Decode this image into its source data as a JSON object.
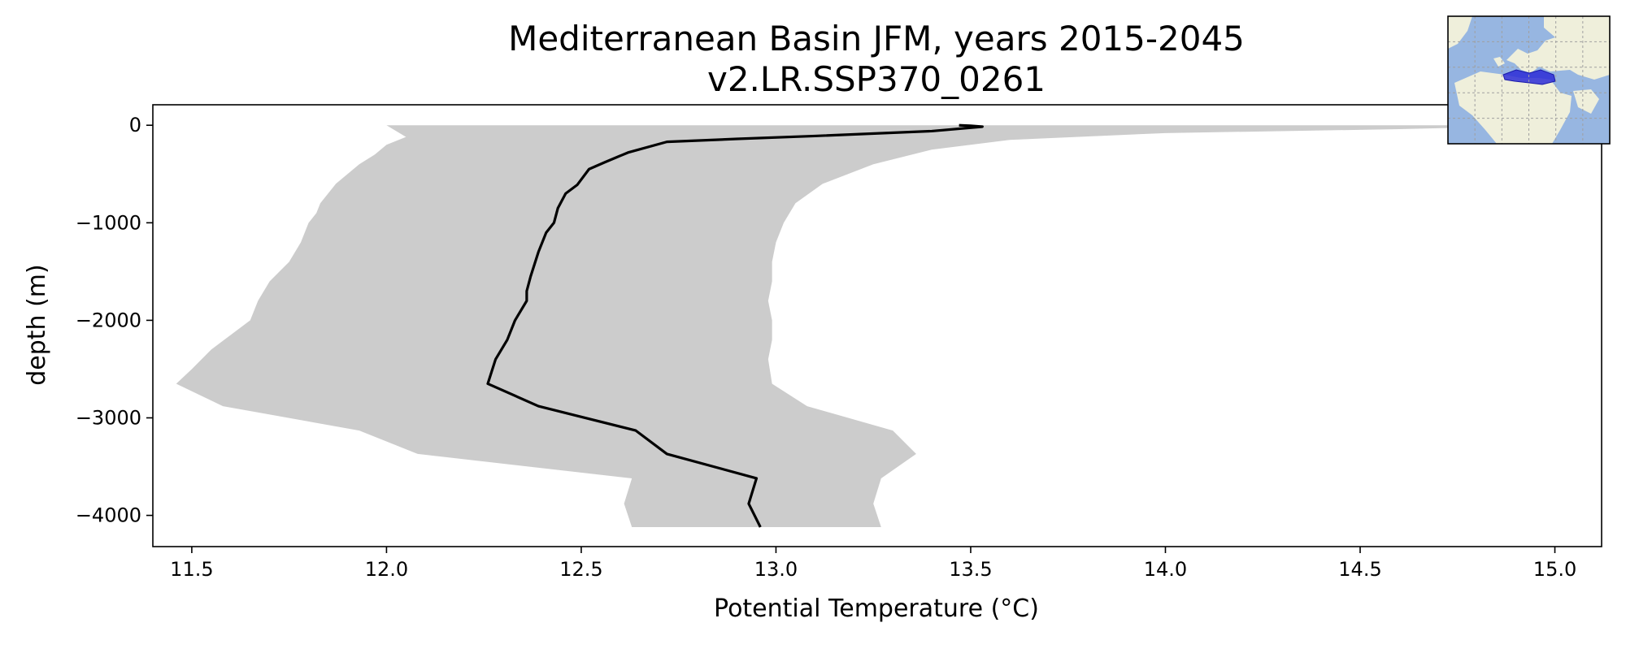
{
  "chart_data": {
    "type": "line",
    "title": "Mediterranean Basin JFM, years 2015-2045",
    "subtitle": "v2.LR.SSP370_0261",
    "xlabel": "Potential Temperature (°C)",
    "ylabel": "depth (m)",
    "xlim": [
      11.4,
      15.12
    ],
    "ylim": [
      -4320,
      210
    ],
    "xticks": [
      11.5,
      12.0,
      12.5,
      13.0,
      13.5,
      14.0,
      14.5,
      15.0
    ],
    "xtick_labels": [
      "11.5",
      "12.0",
      "12.5",
      "13.0",
      "13.5",
      "14.0",
      "14.5",
      "15.0"
    ],
    "yticks": [
      0,
      -1000,
      -2000,
      -3000,
      -4000
    ],
    "ytick_labels": [
      "0",
      "−1000",
      "−2000",
      "−3000",
      "−4000"
    ],
    "grid": false,
    "legend": null,
    "series": [
      {
        "kind": "line",
        "color": "#000000",
        "points": [
          {
            "x": 13.47,
            "y": 0
          },
          {
            "x": 13.5,
            "y": -5
          },
          {
            "x": 13.53,
            "y": -15
          },
          {
            "x": 13.4,
            "y": -60
          },
          {
            "x": 13.1,
            "y": -110
          },
          {
            "x": 12.9,
            "y": -140
          },
          {
            "x": 12.72,
            "y": -170
          },
          {
            "x": 12.62,
            "y": -280
          },
          {
            "x": 12.56,
            "y": -380
          },
          {
            "x": 12.52,
            "y": -450
          },
          {
            "x": 12.49,
            "y": -610
          },
          {
            "x": 12.46,
            "y": -700
          },
          {
            "x": 12.44,
            "y": -850
          },
          {
            "x": 12.43,
            "y": -1000
          },
          {
            "x": 12.41,
            "y": -1100
          },
          {
            "x": 12.39,
            "y": -1300
          },
          {
            "x": 12.37,
            "y": -1550
          },
          {
            "x": 12.36,
            "y": -1700
          },
          {
            "x": 12.36,
            "y": -1800
          },
          {
            "x": 12.33,
            "y": -2000
          },
          {
            "x": 12.31,
            "y": -2200
          },
          {
            "x": 12.28,
            "y": -2400
          },
          {
            "x": 12.26,
            "y": -2650
          },
          {
            "x": 12.39,
            "y": -2880
          },
          {
            "x": 12.64,
            "y": -3130
          },
          {
            "x": 12.72,
            "y": -3370
          },
          {
            "x": 12.95,
            "y": -3620
          },
          {
            "x": 12.93,
            "y": -3880
          },
          {
            "x": 12.96,
            "y": -4120
          }
        ]
      },
      {
        "kind": "band",
        "color": "#cccccc",
        "lower": [
          {
            "x": 12.0,
            "y": 0
          },
          {
            "x": 12.05,
            "y": -120
          },
          {
            "x": 12.0,
            "y": -200
          },
          {
            "x": 11.97,
            "y": -300
          },
          {
            "x": 11.93,
            "y": -400
          },
          {
            "x": 11.9,
            "y": -500
          },
          {
            "x": 11.87,
            "y": -600
          },
          {
            "x": 11.85,
            "y": -700
          },
          {
            "x": 11.83,
            "y": -800
          },
          {
            "x": 11.82,
            "y": -900
          },
          {
            "x": 11.8,
            "y": -1000
          },
          {
            "x": 11.78,
            "y": -1200
          },
          {
            "x": 11.75,
            "y": -1400
          },
          {
            "x": 11.7,
            "y": -1600
          },
          {
            "x": 11.67,
            "y": -1800
          },
          {
            "x": 11.65,
            "y": -2000
          },
          {
            "x": 11.55,
            "y": -2300
          },
          {
            "x": 11.5,
            "y": -2500
          },
          {
            "x": 11.46,
            "y": -2650
          },
          {
            "x": 11.58,
            "y": -2880
          },
          {
            "x": 11.93,
            "y": -3130
          },
          {
            "x": 12.08,
            "y": -3370
          },
          {
            "x": 12.63,
            "y": -3620
          },
          {
            "x": 12.61,
            "y": -3880
          },
          {
            "x": 12.63,
            "y": -4120
          }
        ],
        "upper": [
          {
            "x": 15.0,
            "y": 0
          },
          {
            "x": 14.6,
            "y": -40
          },
          {
            "x": 14.0,
            "y": -80
          },
          {
            "x": 13.6,
            "y": -150
          },
          {
            "x": 13.4,
            "y": -250
          },
          {
            "x": 13.25,
            "y": -400
          },
          {
            "x": 13.12,
            "y": -600
          },
          {
            "x": 13.05,
            "y": -800
          },
          {
            "x": 13.02,
            "y": -1000
          },
          {
            "x": 13.0,
            "y": -1200
          },
          {
            "x": 12.99,
            "y": -1400
          },
          {
            "x": 12.99,
            "y": -1600
          },
          {
            "x": 12.98,
            "y": -1800
          },
          {
            "x": 12.99,
            "y": -2000
          },
          {
            "x": 12.99,
            "y": -2200
          },
          {
            "x": 12.98,
            "y": -2400
          },
          {
            "x": 12.99,
            "y": -2650
          },
          {
            "x": 13.08,
            "y": -2880
          },
          {
            "x": 13.3,
            "y": -3130
          },
          {
            "x": 13.36,
            "y": -3370
          },
          {
            "x": 13.27,
            "y": -3620
          },
          {
            "x": 13.25,
            "y": -3880
          },
          {
            "x": 13.27,
            "y": -4120
          }
        ]
      }
    ]
  },
  "inset_map": {
    "ocean_color": "#97b6e1",
    "land_color": "#efefdb",
    "region_color": "#2b2bd6",
    "gridline_color": "#a0a0a0"
  }
}
